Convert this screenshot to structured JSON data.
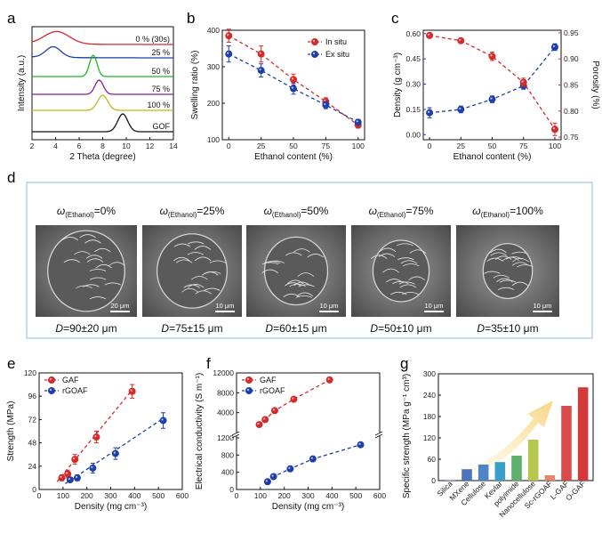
{
  "panels": {
    "a": "a",
    "b": "b",
    "c": "c",
    "d": "d",
    "e": "e",
    "f": "f",
    "g": "g"
  },
  "colors": {
    "red": "#d42a2a",
    "blue": "#1f3fa8",
    "green": "#22b522",
    "purple": "#8a1f9e",
    "olive": "#c4b418",
    "black": "#111111"
  },
  "chart_data": [
    {
      "id": "a",
      "type": "line",
      "xlabel": "2 Theta (degree)",
      "ylabel": "Intensity (a.u.)",
      "xlim": [
        2,
        14
      ],
      "xticks": [
        2,
        4,
        6,
        8,
        10,
        12,
        14
      ],
      "series": [
        {
          "name": "0 % (30s)",
          "color": "#d42a2a",
          "peak": 4.1,
          "width": 1.5
        },
        {
          "name": "25 %",
          "color": "#1f3fa8",
          "peak": 3.8,
          "width": 0.9
        },
        {
          "name": "50 %",
          "color": "#22b522",
          "peak": 7.2,
          "width": 0.45
        },
        {
          "name": "75 %",
          "color": "#8a1f9e",
          "peak": 7.7,
          "width": 0.5
        },
        {
          "name": "100 %",
          "color": "#c4b418",
          "peak": 8.0,
          "width": 0.6
        },
        {
          "name": "GOF",
          "color": "#111111",
          "peak": 9.7,
          "width": 0.6
        }
      ]
    },
    {
      "id": "b",
      "type": "line",
      "xlabel": "Ethanol content (%)",
      "ylabel": "Swelling ratio (%)",
      "xlim": [
        -5,
        105
      ],
      "ylim": [
        100,
        400
      ],
      "xticks": [
        0,
        25,
        50,
        75,
        100
      ],
      "yticks": [
        100,
        200,
        300,
        400
      ],
      "legend": "top-right",
      "series": [
        {
          "name": "In situ",
          "color": "#d42a2a",
          "x": [
            0,
            25,
            50,
            75,
            100
          ],
          "y": [
            385,
            335,
            265,
            205,
            140
          ],
          "err": [
            18,
            22,
            15,
            10,
            8
          ]
        },
        {
          "name": "Ex situ",
          "color": "#1f3fa8",
          "x": [
            0,
            25,
            50,
            75,
            100
          ],
          "y": [
            335,
            290,
            240,
            195,
            148
          ],
          "err": [
            22,
            18,
            15,
            10,
            8
          ]
        }
      ]
    },
    {
      "id": "c",
      "type": "line",
      "xlabel": "Ethanol content (%)",
      "ylabel": "Density (g cm⁻³)",
      "y2label": "Porosity (%)",
      "xlim": [
        -5,
        105
      ],
      "ylim": [
        -0.03,
        0.62
      ],
      "y2lim": [
        0.745,
        0.955
      ],
      "xticks": [
        0,
        25,
        50,
        75,
        100
      ],
      "yticks": [
        0.0,
        0.15,
        0.3,
        0.45,
        0.6
      ],
      "y2ticks": [
        0.75,
        0.8,
        0.85,
        0.9,
        0.95
      ],
      "series": [
        {
          "name": "Density",
          "color": "#1f3fa8",
          "axis": "left",
          "x": [
            0,
            25,
            50,
            75,
            100
          ],
          "y": [
            0.13,
            0.15,
            0.21,
            0.29,
            0.52
          ],
          "err": [
            0.03,
            0.02,
            0.02,
            0.02,
            0.02
          ]
        },
        {
          "name": "Porosity",
          "color": "#d42a2a",
          "axis": "right",
          "x": [
            0,
            25,
            50,
            75,
            100
          ],
          "y": [
            0.945,
            0.935,
            0.905,
            0.855,
            0.765
          ],
          "err": [
            0.005,
            0.004,
            0.008,
            0.008,
            0.012
          ]
        }
      ]
    },
    {
      "id": "e",
      "type": "scatter",
      "xlabel": "Density (mg cm⁻³)",
      "ylabel": "Strength (MPa)",
      "xlim": [
        0,
        600
      ],
      "ylim": [
        0,
        120
      ],
      "xticks": [
        0,
        100,
        200,
        300,
        400,
        500,
        600
      ],
      "yticks": [
        0,
        24,
        48,
        72,
        96,
        120
      ],
      "legend": "top-left",
      "series": [
        {
          "name": "GAF",
          "color": "#d42a2a",
          "x": [
            95,
            120,
            150,
            240,
            390
          ],
          "y": [
            12,
            16,
            31,
            54,
            101
          ],
          "err": [
            3,
            4,
            5,
            6,
            7
          ]
        },
        {
          "name": "rGOAF",
          "color": "#1f3fa8",
          "x": [
            130,
            160,
            225,
            320,
            520
          ],
          "y": [
            10,
            12,
            22,
            37,
            71
          ],
          "err": [
            2,
            3,
            5,
            6,
            8
          ]
        }
      ]
    },
    {
      "id": "f",
      "type": "scatter",
      "xlabel": "Density (mg cm⁻³)",
      "ylabel": "Electrical conductivity (S m⁻¹)",
      "xlim": [
        0,
        600
      ],
      "xticks": [
        0,
        100,
        200,
        300,
        400,
        500,
        600
      ],
      "ytick_labels": [
        "0",
        "400",
        "800",
        "1200",
        "4000",
        "8000",
        "12000"
      ],
      "axis_break": true,
      "legend": "top-left",
      "series": [
        {
          "name": "GAF",
          "color": "#d42a2a",
          "x": [
            95,
            120,
            160,
            240,
            390
          ],
          "y": [
            1600,
            2600,
            4400,
            6700,
            10600
          ]
        },
        {
          "name": "rGOAF",
          "color": "#1f3fa8",
          "x": [
            130,
            155,
            225,
            320,
            520
          ],
          "y": [
            180,
            300,
            480,
            710,
            1040
          ]
        }
      ]
    },
    {
      "id": "g",
      "type": "bar",
      "ylabel": "Specific strength (MPa g⁻¹ cm³)",
      "ylim": [
        0,
        300
      ],
      "yticks": [
        0,
        60,
        120,
        180,
        240,
        300
      ],
      "categories": [
        "Silica",
        "MXene",
        "Cellulose",
        "Kevlar",
        "polyimide",
        "Nanocellulose",
        "Sc-rGOAF",
        "L-GAF",
        "O-GAF"
      ],
      "values": [
        3,
        32,
        45,
        52,
        70,
        115,
        15,
        210,
        262
      ],
      "bar_colors": [
        "#a9b6d6",
        "#4f73b8",
        "#4f85c4",
        "#3aa0c9",
        "#5cb06b",
        "#b7c64f",
        "#e08a6c",
        "#d94a4a",
        "#d23a3a"
      ]
    }
  ],
  "sem": {
    "captions": [
      "ω(Ethanol)=0%",
      "ω(Ethanol)=25%",
      "ω(Ethanol)=50%",
      "ω(Ethanol)=75%",
      "ω(Ethanol)=100%"
    ],
    "diameters": [
      "D=90±20 μm",
      "D=75±15 μm",
      "D=60±15 μm",
      "D=50±10 μm",
      "D=35±10 μm"
    ],
    "scalebars": [
      "20 μm",
      "10 μm",
      "10 μm",
      "10 μm",
      "10 μm"
    ]
  }
}
